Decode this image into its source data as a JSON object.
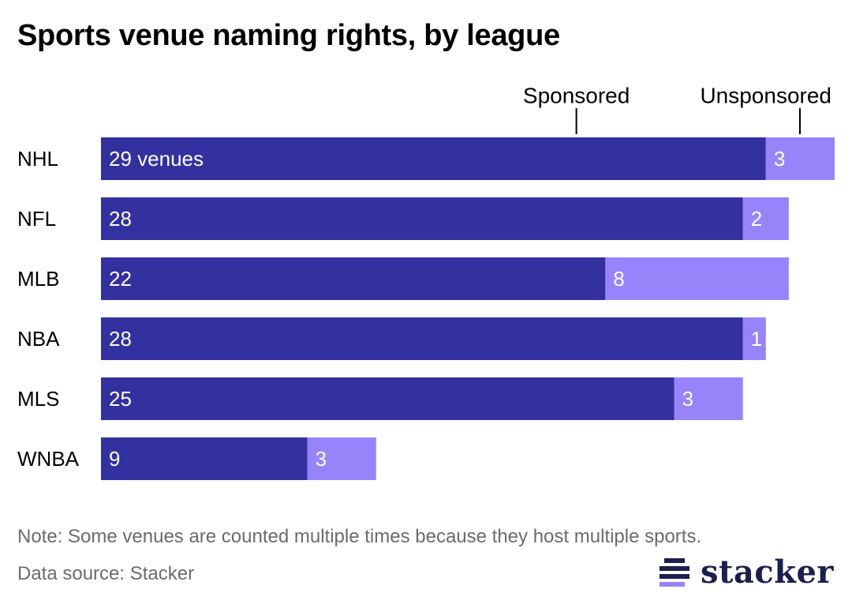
{
  "title": "Sports venue naming rights, by league",
  "note": "Note: Some venues are counted multiple times because they host multiple sports.",
  "source": "Data source: Stacker",
  "logo": {
    "text": "stacker",
    "icon": "stacker-stripes-logo"
  },
  "colors": {
    "sponsored": "#3330a0",
    "unsponsored": "#9784fb",
    "logo": "#1c1f4c"
  },
  "chart_data": {
    "type": "bar",
    "orientation": "horizontal",
    "stacked": true,
    "title": "Sports venue naming rights, by league",
    "categories": [
      "NHL",
      "NFL",
      "MLB",
      "NBA",
      "MLS",
      "WNBA"
    ],
    "series": [
      {
        "name": "Sponsored",
        "values": [
          29,
          28,
          22,
          28,
          25,
          9
        ]
      },
      {
        "name": "Unsponsored",
        "values": [
          3,
          2,
          8,
          1,
          3,
          3
        ]
      }
    ],
    "first_label_suffix": " venues",
    "xlim": [
      0,
      32
    ],
    "grid": false,
    "legend": "top-right, above first bar"
  }
}
